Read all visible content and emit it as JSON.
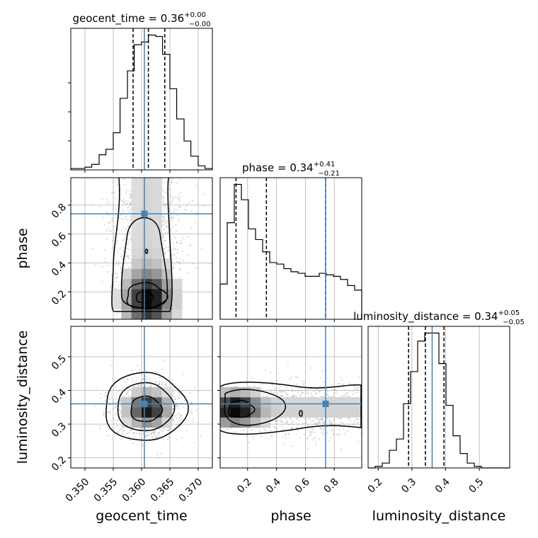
{
  "chart_data": {
    "type": "corner",
    "parameters": [
      "geocent_time",
      "phase",
      "luminosity_distance"
    ],
    "truth_color": "#4682b4",
    "titles": [
      {
        "param": "geocent_time",
        "prefix": "geocent_time = ",
        "median": "0.36",
        "plus": "+0.00",
        "minus": "−0.00"
      },
      {
        "param": "phase",
        "prefix": "phase = ",
        "median": "0.34",
        "plus": "+0.41",
        "minus": "−0.21"
      },
      {
        "param": "luminosity_distance",
        "prefix": "luminosity_distance = ",
        "median": "0.34",
        "plus": "+0.05",
        "minus": "−0.05"
      }
    ],
    "axes": {
      "geocent_time": {
        "xlabel": "geocent_time",
        "range": [
          0.3475,
          0.3725
        ],
        "ticks": [
          "0.350",
          "0.355",
          "0.360",
          "0.365",
          "0.370"
        ]
      },
      "phase": {
        "xlabel": "phase",
        "ylabel": "phase",
        "range": [
          0.01,
          0.99
        ],
        "ticks": [
          "0.2",
          "0.4",
          "0.6",
          "0.8"
        ]
      },
      "luminosity_distance": {
        "xlabel": "luminosity_distance",
        "ylabel": "luminosity_distance",
        "range": [
          0.17,
          0.59
        ],
        "ticks": [
          "0.2",
          "0.3",
          "0.4",
          "0.5"
        ]
      }
    },
    "truths": {
      "geocent_time": 0.3605,
      "phase": 0.74,
      "luminosity_distance": 0.36
    },
    "quantiles": {
      "geocent_time": [
        0.3585,
        0.3612,
        0.3641
      ],
      "phase": [
        0.12,
        0.33,
        0.74
      ],
      "luminosity_distance": [
        0.29,
        0.34,
        0.395
      ]
    },
    "histograms": {
      "geocent_time": {
        "edges": [
          0.3475,
          0.3487,
          0.35,
          0.3512,
          0.3525,
          0.3537,
          0.355,
          0.3562,
          0.3575,
          0.3587,
          0.36,
          0.3612,
          0.3625,
          0.3637,
          0.365,
          0.3662,
          0.3675,
          0.3687,
          0.37,
          0.3712,
          0.3725
        ],
        "counts": [
          0.01,
          0.01,
          0.02,
          0.04,
          0.11,
          0.15,
          0.27,
          0.52,
          0.72,
          0.91,
          0.93,
          0.98,
          0.97,
          0.84,
          0.59,
          0.37,
          0.21,
          0.1,
          0.03,
          0.01
        ]
      },
      "phase": {
        "edges": [
          0.01,
          0.059,
          0.108,
          0.157,
          0.206,
          0.255,
          0.304,
          0.353,
          0.402,
          0.451,
          0.5,
          0.549,
          0.598,
          0.647,
          0.696,
          0.745,
          0.794,
          0.843,
          0.892,
          0.941,
          0.99
        ],
        "counts": [
          0.23,
          0.63,
          0.88,
          0.78,
          0.59,
          0.52,
          0.44,
          0.37,
          0.36,
          0.33,
          0.31,
          0.3,
          0.28,
          0.28,
          0.3,
          0.29,
          0.28,
          0.26,
          0.22,
          0.19
        ]
      },
      "luminosity_distance": {
        "edges": [
          0.17,
          0.191,
          0.212,
          0.233,
          0.254,
          0.275,
          0.296,
          0.317,
          0.338,
          0.359,
          0.38,
          0.401,
          0.422,
          0.443,
          0.464,
          0.485,
          0.506,
          0.527,
          0.548,
          0.569,
          0.59
        ],
        "counts": [
          0.0,
          0.01,
          0.03,
          0.11,
          0.18,
          0.4,
          0.6,
          0.79,
          0.84,
          0.84,
          0.65,
          0.39,
          0.2,
          0.09,
          0.03,
          0.01,
          0.0,
          0.0,
          0.0,
          0.0
        ]
      }
    },
    "grid": true
  }
}
